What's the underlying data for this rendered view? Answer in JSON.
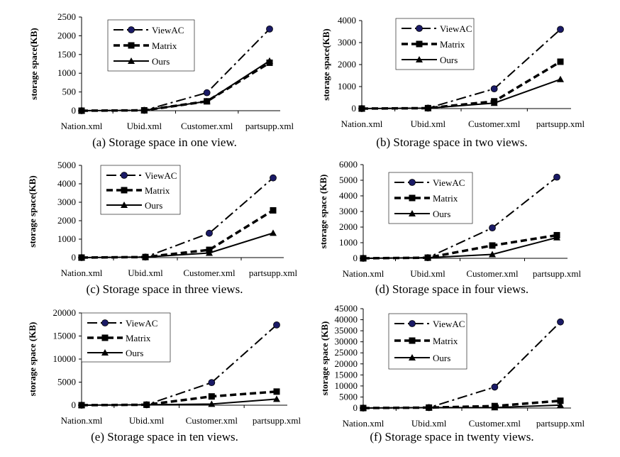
{
  "chart_data": [
    {
      "type": "line",
      "caption": "(a) Storage space in one view.",
      "ylabel": "storage space(KB)",
      "categories": [
        "Nation.xml",
        "Ubid.xml",
        "Customer.xml",
        "partsupp.xml"
      ],
      "ylim": [
        0,
        2500
      ],
      "yticks": [
        "0",
        "500",
        "1000",
        "1500",
        "2000",
        "2500"
      ],
      "series": [
        {
          "name": "ViewAC",
          "values": [
            0,
            10,
            480,
            2180
          ]
        },
        {
          "name": "Matrix",
          "values": [
            0,
            10,
            250,
            1280
          ]
        },
        {
          "name": "Ours",
          "values": [
            0,
            10,
            250,
            1330
          ]
        }
      ]
    },
    {
      "type": "line",
      "caption": "(b) Storage space in two views.",
      "ylabel": "storage space(KB)",
      "categories": [
        "Nation.xml",
        "Ubid.xml",
        "Customer.xml",
        "partsupp.xml"
      ],
      "ylim": [
        0,
        4000
      ],
      "yticks": [
        "0",
        "1000",
        "2000",
        "3000",
        "4000"
      ],
      "series": [
        {
          "name": "ViewAC",
          "values": [
            0,
            20,
            900,
            3600
          ]
        },
        {
          "name": "Matrix",
          "values": [
            0,
            20,
            330,
            2130
          ]
        },
        {
          "name": "Ours",
          "values": [
            0,
            20,
            250,
            1330
          ]
        }
      ]
    },
    {
      "type": "line",
      "caption": "(c) Storage space in three views.",
      "ylabel": "storage space(KB)",
      "categories": [
        "Nation.xml",
        "Ubid.xml",
        "Customer.xml",
        "partsupp.xml"
      ],
      "ylim": [
        0,
        5000
      ],
      "yticks": [
        "0",
        "1000",
        "2000",
        "3000",
        "4000",
        "5000"
      ],
      "series": [
        {
          "name": "ViewAC",
          "values": [
            0,
            30,
            1320,
            4320
          ]
        },
        {
          "name": "Matrix",
          "values": [
            0,
            30,
            420,
            2560
          ]
        },
        {
          "name": "Ours",
          "values": [
            0,
            30,
            250,
            1330
          ]
        }
      ]
    },
    {
      "type": "line",
      "caption": "(d) Storage space in four views.",
      "ylabel": "storage space (KB)",
      "categories": [
        "Nation.xml",
        "Ubid.xml",
        "Customer.xml",
        "partsupp.xml"
      ],
      "ylim": [
        0,
        6000
      ],
      "yticks": [
        "0",
        "1000",
        "2000",
        "3000",
        "4000",
        "5000",
        "6000"
      ],
      "series": [
        {
          "name": "ViewAC",
          "values": [
            0,
            40,
            1950,
            5200
          ]
        },
        {
          "name": "Matrix",
          "values": [
            0,
            40,
            820,
            1480
          ]
        },
        {
          "name": "Ours",
          "values": [
            0,
            40,
            250,
            1330
          ]
        }
      ]
    },
    {
      "type": "line",
      "caption": "(e) Storage space in ten views.",
      "ylabel": "storage space (KB)",
      "categories": [
        "Nation.xml",
        "Ubid.xml",
        "Customer.xml",
        "partsupp.xml"
      ],
      "ylim": [
        0,
        20000
      ],
      "yticks": [
        "0",
        "5000",
        "10000",
        "15000",
        "20000"
      ],
      "series": [
        {
          "name": "ViewAC",
          "values": [
            0,
            100,
            4900,
            17400
          ]
        },
        {
          "name": "Matrix",
          "values": [
            0,
            100,
            1900,
            2950
          ]
        },
        {
          "name": "Ours",
          "values": [
            0,
            100,
            250,
            1330
          ]
        }
      ]
    },
    {
      "type": "line",
      "caption": "(f) Storage space in twenty views.",
      "ylabel": "storage space (KB)",
      "categories": [
        "Nation.xml",
        "Ubid.xml",
        "Customer.xml",
        "partsupp.xml"
      ],
      "ylim": [
        0,
        45000
      ],
      "yticks": [
        "0",
        "5000",
        "10000",
        "15000",
        "20000",
        "25000",
        "30000",
        "35000",
        "40000",
        "45000"
      ],
      "series": [
        {
          "name": "ViewAC",
          "values": [
            0,
            200,
            9500,
            39000
          ]
        },
        {
          "name": "Matrix",
          "values": [
            0,
            200,
            900,
            3300
          ]
        },
        {
          "name": "Ours",
          "values": [
            0,
            200,
            250,
            1330
          ]
        }
      ]
    }
  ],
  "legend_labels": [
    "ViewAC",
    "Matrix",
    "Ours"
  ]
}
